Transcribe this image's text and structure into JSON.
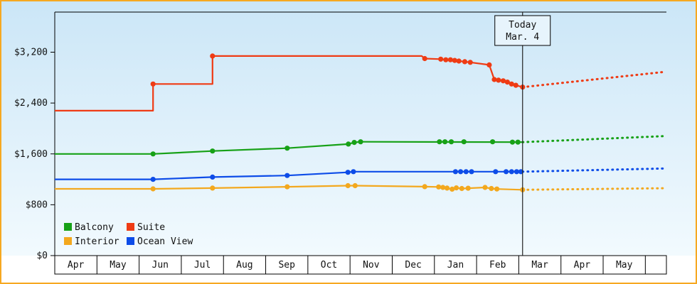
{
  "chart_data": {
    "type": "line",
    "title": "",
    "xlabel": "",
    "ylabel": "",
    "ylim": [
      0,
      3840
    ],
    "grid": false,
    "x_ticks": [
      "Apr",
      "May",
      "Jun",
      "Jul",
      "Aug",
      "Sep",
      "Oct",
      "Nov",
      "Dec",
      "Jan",
      "Feb",
      "Mar",
      "Apr",
      "May"
    ],
    "y_ticks": [
      {
        "label": "$0",
        "value": 0
      },
      {
        "label": "$800",
        "value": 800
      },
      {
        "label": "$1,600",
        "value": 1600
      },
      {
        "label": "$2,400",
        "value": 2400
      },
      {
        "label": "$3,200",
        "value": 3200
      }
    ],
    "today": {
      "label_line1": "Today",
      "label_line2": "Mar. 4",
      "t": 11.09
    },
    "colors": {
      "frame_border": "#f6a821",
      "background_top": "#cbe6f7",
      "background_bottom": "#f2fafe",
      "axis": "#000000",
      "today_line": "#222222",
      "today_box_fill": "#e7f4fc"
    },
    "series": [
      {
        "name": "Suite",
        "color": "#ef3b14",
        "history": [
          [
            0,
            2280
          ],
          [
            2.33,
            2280
          ],
          [
            2.33,
            2700
          ],
          [
            3.74,
            2700
          ],
          [
            3.74,
            3140
          ],
          [
            8.7,
            3140
          ],
          [
            8.77,
            3100
          ],
          [
            9.15,
            3090
          ],
          [
            9.27,
            3080
          ],
          [
            9.38,
            3080
          ],
          [
            9.48,
            3070
          ],
          [
            9.58,
            3060
          ],
          [
            9.72,
            3050
          ],
          [
            9.85,
            3040
          ],
          [
            10.3,
            3000
          ],
          [
            10.42,
            2770
          ],
          [
            10.52,
            2760
          ],
          [
            10.63,
            2750
          ],
          [
            10.73,
            2730
          ],
          [
            10.83,
            2700
          ],
          [
            10.93,
            2680
          ],
          [
            11.09,
            2650
          ]
        ],
        "markers": [
          [
            2.33,
            2700
          ],
          [
            3.74,
            3140
          ],
          [
            8.77,
            3100
          ],
          [
            9.15,
            3090
          ],
          [
            9.27,
            3080
          ],
          [
            9.38,
            3080
          ],
          [
            9.48,
            3070
          ],
          [
            9.58,
            3060
          ],
          [
            9.72,
            3050
          ],
          [
            9.85,
            3040
          ],
          [
            10.3,
            3000
          ],
          [
            10.42,
            2770
          ],
          [
            10.52,
            2760
          ],
          [
            10.63,
            2750
          ],
          [
            10.73,
            2730
          ],
          [
            10.83,
            2700
          ],
          [
            10.93,
            2680
          ],
          [
            11.09,
            2650
          ]
        ],
        "forecast": [
          [
            11.09,
            2650
          ],
          [
            14.45,
            2890
          ]
        ]
      },
      {
        "name": "Balcony",
        "color": "#17a117",
        "history": [
          [
            0,
            1600
          ],
          [
            2.33,
            1600
          ],
          [
            3.74,
            1645
          ],
          [
            5.51,
            1690
          ],
          [
            6.96,
            1755
          ],
          [
            7.1,
            1780
          ],
          [
            7.25,
            1790
          ],
          [
            11.09,
            1785
          ]
        ],
        "markers": [
          [
            2.33,
            1600
          ],
          [
            3.74,
            1645
          ],
          [
            5.51,
            1690
          ],
          [
            6.96,
            1755
          ],
          [
            7.1,
            1780
          ],
          [
            7.25,
            1790
          ],
          [
            9.12,
            1790
          ],
          [
            9.25,
            1790
          ],
          [
            9.4,
            1790
          ],
          [
            9.7,
            1790
          ],
          [
            10.38,
            1790
          ],
          [
            10.85,
            1785
          ],
          [
            10.98,
            1785
          ]
        ],
        "forecast": [
          [
            11.09,
            1785
          ],
          [
            14.45,
            1880
          ]
        ]
      },
      {
        "name": "Ocean View",
        "color": "#0d4ce8",
        "history": [
          [
            0,
            1200
          ],
          [
            2.33,
            1200
          ],
          [
            3.74,
            1235
          ],
          [
            5.51,
            1260
          ],
          [
            6.95,
            1310
          ],
          [
            7.08,
            1320
          ],
          [
            11.09,
            1320
          ]
        ],
        "markers": [
          [
            2.33,
            1200
          ],
          [
            3.74,
            1235
          ],
          [
            5.51,
            1260
          ],
          [
            6.95,
            1310
          ],
          [
            7.08,
            1320
          ],
          [
            9.5,
            1320
          ],
          [
            9.62,
            1320
          ],
          [
            9.75,
            1320
          ],
          [
            9.88,
            1320
          ],
          [
            10.45,
            1320
          ],
          [
            10.7,
            1320
          ],
          [
            10.83,
            1320
          ],
          [
            10.95,
            1320
          ],
          [
            11.05,
            1320
          ]
        ],
        "forecast": [
          [
            11.09,
            1320
          ],
          [
            14.45,
            1370
          ]
        ]
      },
      {
        "name": "Interior",
        "color": "#f3a81e",
        "history": [
          [
            0,
            1050
          ],
          [
            2.33,
            1050
          ],
          [
            3.74,
            1062
          ],
          [
            5.51,
            1082
          ],
          [
            6.95,
            1100
          ],
          [
            7.12,
            1100
          ],
          [
            8.77,
            1085
          ],
          [
            9.1,
            1080
          ],
          [
            9.2,
            1072
          ],
          [
            9.3,
            1062
          ],
          [
            9.42,
            1045
          ],
          [
            9.52,
            1065
          ],
          [
            9.65,
            1055
          ],
          [
            9.8,
            1060
          ],
          [
            10.2,
            1072
          ],
          [
            10.35,
            1055
          ],
          [
            10.48,
            1048
          ],
          [
            11.09,
            1035
          ]
        ],
        "markers": [
          [
            2.33,
            1050
          ],
          [
            3.74,
            1062
          ],
          [
            5.51,
            1082
          ],
          [
            6.95,
            1100
          ],
          [
            7.12,
            1100
          ],
          [
            8.77,
            1085
          ],
          [
            9.1,
            1080
          ],
          [
            9.2,
            1072
          ],
          [
            9.3,
            1062
          ],
          [
            9.42,
            1045
          ],
          [
            9.52,
            1065
          ],
          [
            9.65,
            1055
          ],
          [
            9.8,
            1060
          ],
          [
            10.2,
            1072
          ],
          [
            10.35,
            1055
          ],
          [
            10.48,
            1048
          ],
          [
            11.09,
            1035
          ]
        ],
        "forecast": [
          [
            11.09,
            1035
          ],
          [
            14.45,
            1060
          ]
        ]
      }
    ],
    "legend": {
      "position": "bottom-left",
      "items": [
        {
          "label": "Balcony",
          "color": "#17a117"
        },
        {
          "label": "Suite",
          "color": "#ef3b14"
        },
        {
          "label": "Interior",
          "color": "#f3a81e"
        },
        {
          "label": "Ocean View",
          "color": "#0d4ce8"
        }
      ]
    }
  }
}
